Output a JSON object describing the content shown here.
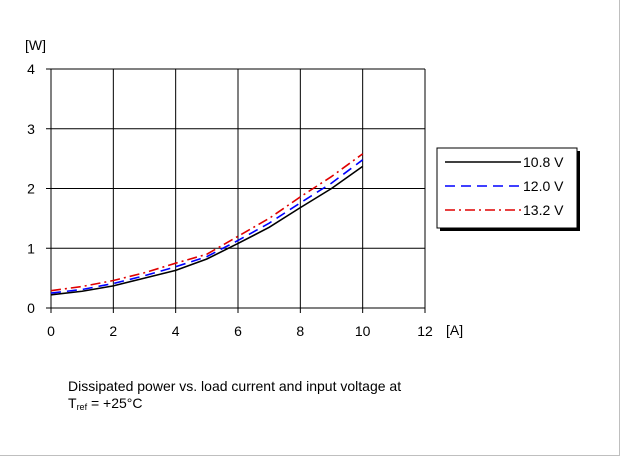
{
  "chart_data": {
    "type": "line",
    "xlabel": "[A]",
    "ylabel": "[W]",
    "xlim": [
      0,
      12
    ],
    "ylim": [
      0,
      4
    ],
    "xticks": [
      "0",
      "2",
      "4",
      "6",
      "8",
      "10",
      "12"
    ],
    "yticks": [
      "0",
      "1",
      "2",
      "3",
      "4"
    ],
    "grid": true,
    "legend_position": "right",
    "x": [
      0,
      1,
      2,
      3,
      4,
      5,
      6,
      7,
      8,
      9,
      10
    ],
    "series": [
      {
        "name": "10.8 V",
        "color": "#000000",
        "dash": "solid",
        "values": [
          0.22,
          0.28,
          0.37,
          0.5,
          0.63,
          0.82,
          1.08,
          1.35,
          1.68,
          2.0,
          2.37
        ]
      },
      {
        "name": "12.0 V",
        "color": "#0000ff",
        "dash": "dashed",
        "values": [
          0.25,
          0.31,
          0.41,
          0.54,
          0.69,
          0.86,
          1.13,
          1.42,
          1.76,
          2.09,
          2.48
        ]
      },
      {
        "name": "13.2 V",
        "color": "#e00000",
        "dash": "dashdot",
        "values": [
          0.29,
          0.36,
          0.46,
          0.59,
          0.75,
          0.9,
          1.2,
          1.5,
          1.86,
          2.2,
          2.58
        ]
      }
    ]
  },
  "caption": {
    "line1": "Dissipated power vs. load current and input voltage at",
    "t": "T",
    "ref": "ref",
    "rest": " = +25°C"
  }
}
